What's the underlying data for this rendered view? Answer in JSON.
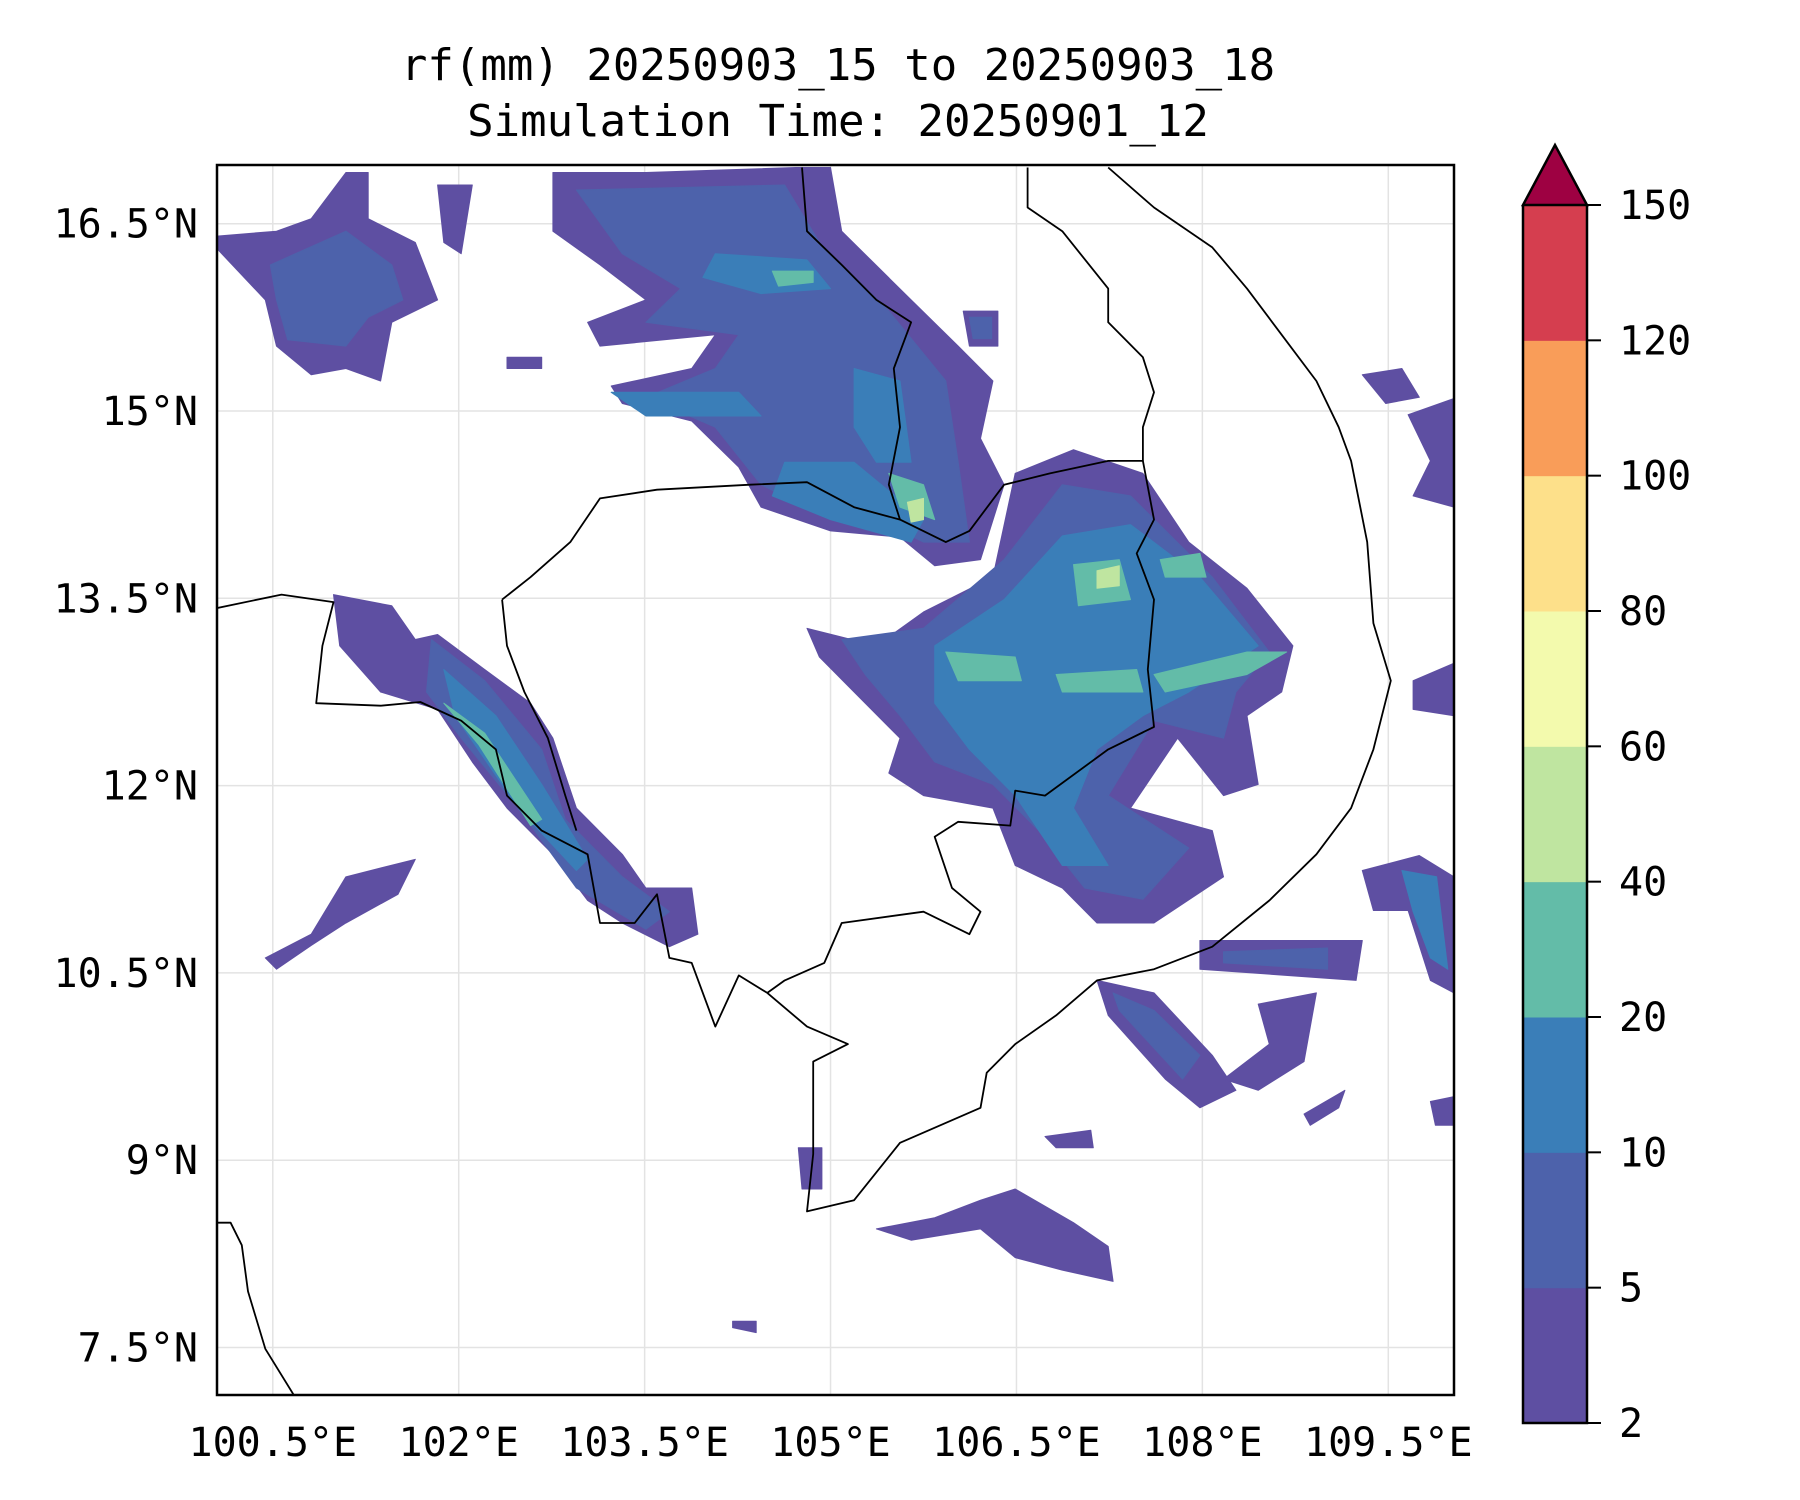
{
  "chart_data": {
    "type": "contourf-map",
    "title": [
      "rf(mm) 20250903_15 to 20250903_18",
      "Simulation Time: 20250901_12"
    ],
    "xlabel": "",
    "ylabel": "",
    "xlim": [
      100.05,
      110.03
    ],
    "ylim": [
      7.12,
      16.97
    ],
    "grid": true,
    "xticks": [
      {
        "value": 100.5,
        "label": "100.5°E"
      },
      {
        "value": 102,
        "label": "102°E"
      },
      {
        "value": 103.5,
        "label": "103.5°E"
      },
      {
        "value": 105,
        "label": "105°E"
      },
      {
        "value": 106.5,
        "label": "106.5°E"
      },
      {
        "value": 108,
        "label": "108°E"
      },
      {
        "value": 109.5,
        "label": "109.5°E"
      }
    ],
    "yticks": [
      {
        "value": 16.5,
        "label": "16.5°N"
      },
      {
        "value": 15,
        "label": "15°N"
      },
      {
        "value": 13.5,
        "label": "13.5°N"
      },
      {
        "value": 12,
        "label": "12°N"
      },
      {
        "value": 10.5,
        "label": "10.5°N"
      },
      {
        "value": 9,
        "label": "9°N"
      },
      {
        "value": 7.5,
        "label": "7.5°N"
      }
    ],
    "colorbar": {
      "levels": [
        2,
        5,
        10,
        20,
        40,
        60,
        80,
        100,
        120,
        150
      ],
      "labels": [
        "2",
        "5",
        "10",
        "20",
        "40",
        "60",
        "80",
        "100",
        "120",
        "150"
      ],
      "colors": [
        "#5e4fa2",
        "#4d62ab",
        "#3a7eb8",
        "#63bca8",
        "#bfe5a0",
        "#f3faad",
        "#fde08a",
        "#f99d59",
        "#d53e4f"
      ],
      "extend_max_color": "#9e0142",
      "placement": "right"
    },
    "rain_regions": [
      {
        "level": 0,
        "pts": [
          104.81,
          13.26,
          105.37,
          13.12,
          105.75,
          13.39,
          106.31,
          13.67,
          106.49,
          14.5,
          106.96,
          14.69,
          107.52,
          14.5,
          107.89,
          13.95,
          108.36,
          13.58,
          108.73,
          13.12,
          108.64,
          12.75,
          108.36,
          12.56,
          108.45,
          12.01,
          108.17,
          11.92,
          107.8,
          12.38,
          107.42,
          11.82,
          108.08,
          11.64,
          108.17,
          11.27,
          107.61,
          10.9,
          107.15,
          10.9,
          106.87,
          11.18,
          106.49,
          11.36,
          106.31,
          11.82,
          105.75,
          11.92,
          105.47,
          12.1,
          105.56,
          12.38,
          105.19,
          12.75,
          104.91,
          13.03
        ]
      },
      {
        "level": 0,
        "pts": [
          102.76,
          16.91,
          103.51,
          16.91,
          104.72,
          16.95,
          105.0,
          16.95,
          105.09,
          16.44,
          105.65,
          15.89,
          106.03,
          15.52,
          106.31,
          15.24,
          106.21,
          14.78,
          106.4,
          14.41,
          106.21,
          13.81,
          105.84,
          13.76,
          105.56,
          13.99,
          105.0,
          14.04,
          104.44,
          14.23,
          104.26,
          14.55,
          103.88,
          14.92,
          103.32,
          15.06,
          103.23,
          15.2,
          103.88,
          15.34,
          104.07,
          15.61,
          103.14,
          15.52,
          103.04,
          15.71,
          103.51,
          15.89,
          103.14,
          16.17,
          102.76,
          16.44
        ]
      },
      {
        "level": 0,
        "pts": [
          100.04,
          16.4,
          100.53,
          16.44,
          100.81,
          16.54,
          101.09,
          16.91,
          101.27,
          16.91,
          101.27,
          16.54,
          101.65,
          16.35,
          101.83,
          15.89,
          101.46,
          15.71,
          101.37,
          15.24,
          101.09,
          15.34,
          100.81,
          15.29,
          100.53,
          15.52,
          100.44,
          15.89,
          100.04,
          16.31
        ]
      },
      {
        "level": 0,
        "pts": [
          100.99,
          13.53,
          101.46,
          13.44,
          101.65,
          13.17,
          101.83,
          13.21,
          102.21,
          12.93,
          102.58,
          12.66,
          102.76,
          12.38,
          102.95,
          11.82,
          103.32,
          11.45,
          103.51,
          11.18,
          103.88,
          11.18,
          103.93,
          10.81,
          103.7,
          10.71,
          103.32,
          10.9,
          103.04,
          11.08,
          102.76,
          11.45,
          102.39,
          11.82,
          102.11,
          12.19,
          101.83,
          12.61,
          101.37,
          12.75,
          101.04,
          13.12
        ]
      },
      {
        "level": 0,
        "pts": [
          107.15,
          10.44,
          107.61,
          10.34,
          108.08,
          9.84,
          108.27,
          9.56,
          107.98,
          9.42,
          107.7,
          9.65,
          107.24,
          10.16
        ]
      },
      {
        "level": 0,
        "pts": [
          108.45,
          10.25,
          108.92,
          10.34,
          108.82,
          9.79,
          108.45,
          9.56,
          108.17,
          9.65,
          108.54,
          9.93
        ]
      },
      {
        "level": 0,
        "pts": [
          107.98,
          10.76,
          109.29,
          10.76,
          109.24,
          10.44,
          107.98,
          10.53
        ]
      },
      {
        "level": 0,
        "pts": [
          109.29,
          11.32,
          109.75,
          11.44,
          110.03,
          11.27,
          110.03,
          10.34,
          109.84,
          10.44,
          109.66,
          11.0,
          109.38,
          11.0
        ]
      },
      {
        "level": 0,
        "pts": [
          105.37,
          8.45,
          105.84,
          8.54,
          106.21,
          8.68,
          106.49,
          8.77,
          106.96,
          8.5,
          107.24,
          8.31,
          107.28,
          8.03,
          106.87,
          8.12,
          106.49,
          8.22,
          106.21,
          8.45,
          105.65,
          8.36
        ]
      },
      {
        "level": 0,
        "pts": [
          106.73,
          9.19,
          107.1,
          9.24,
          107.12,
          9.1,
          106.82,
          9.1
        ]
      },
      {
        "level": 0,
        "pts": [
          108.82,
          9.37,
          109.15,
          9.56,
          109.1,
          9.42,
          108.87,
          9.28
        ]
      },
      {
        "level": 0,
        "pts": [
          100.44,
          10.62,
          100.81,
          10.81,
          101.09,
          11.27,
          101.65,
          11.41,
          101.51,
          11.13,
          101.09,
          10.9,
          100.81,
          10.72,
          100.53,
          10.53
        ]
      },
      {
        "level": 0,
        "pts": [
          109.29,
          15.29,
          109.61,
          15.34,
          109.75,
          15.11,
          109.48,
          15.06
        ]
      },
      {
        "level": 0,
        "pts": [
          109.66,
          14.97,
          110.03,
          15.1,
          110.03,
          14.23,
          109.7,
          14.32,
          109.84,
          14.6
        ]
      },
      {
        "level": 0,
        "pts": [
          109.7,
          12.84,
          110.03,
          12.98,
          110.03,
          12.56,
          109.7,
          12.61
        ]
      },
      {
        "level": 0,
        "pts": [
          109.84,
          9.47,
          110.03,
          9.51,
          110.03,
          9.28,
          109.88,
          9.28
        ]
      },
      {
        "level": 0,
        "pts": [
          104.21,
          7.71,
          104.4,
          7.71,
          104.4,
          7.62,
          104.21,
          7.66
        ]
      },
      {
        "level": 0,
        "pts": [
          104.74,
          9.1,
          104.93,
          9.1,
          104.93,
          8.77,
          104.77,
          8.77
        ]
      },
      {
        "level": 0,
        "pts": [
          102.39,
          15.43,
          102.67,
          15.43,
          102.67,
          15.34,
          102.39,
          15.34
        ]
      },
      {
        "level": 0,
        "pts": [
          101.83,
          16.81,
          102.11,
          16.81,
          102.02,
          16.26,
          101.88,
          16.35
        ]
      },
      {
        "level": 0,
        "pts": [
          106.07,
          15.8,
          106.35,
          15.8,
          106.35,
          15.52,
          106.12,
          15.52
        ]
      },
      {
        "level": 1,
        "pts": [
          105.09,
          13.17,
          105.75,
          13.26,
          106.4,
          13.81,
          106.87,
          14.41,
          107.42,
          14.32,
          108.08,
          13.67,
          108.54,
          13.07,
          108.27,
          12.75,
          108.17,
          12.38,
          107.61,
          12.52,
          107.24,
          11.92,
          107.89,
          11.5,
          107.52,
          11.09,
          107.05,
          11.18,
          106.68,
          11.64,
          106.31,
          12.01,
          105.84,
          12.19,
          105.56,
          12.56,
          105.28,
          12.89
        ]
      },
      {
        "level": 1,
        "pts": [
          102.95,
          16.77,
          104.63,
          16.81,
          104.91,
          16.35,
          105.47,
          15.8,
          105.93,
          15.24,
          106.03,
          14.59,
          106.12,
          13.95,
          105.75,
          13.95,
          105.37,
          14.13,
          104.81,
          14.23,
          104.44,
          14.41,
          104.07,
          14.87,
          103.51,
          15.11,
          104.07,
          15.34,
          104.26,
          15.61,
          103.51,
          15.71,
          103.79,
          15.98,
          103.32,
          16.26
        ]
      },
      {
        "level": 1,
        "pts": [
          100.48,
          16.17,
          101.09,
          16.44,
          101.46,
          16.17,
          101.55,
          15.89,
          101.27,
          15.75,
          101.09,
          15.52,
          100.62,
          15.57,
          100.53,
          15.89
        ]
      },
      {
        "level": 1,
        "pts": [
          101.78,
          13.17,
          102.21,
          12.84,
          102.67,
          12.29,
          102.86,
          11.73,
          103.32,
          11.27,
          103.7,
          10.99,
          103.51,
          10.85,
          102.95,
          11.18,
          102.48,
          11.82,
          102.02,
          12.38,
          101.74,
          12.75
        ]
      },
      {
        "level": 1,
        "pts": [
          107.28,
          10.34,
          107.61,
          10.2,
          107.98,
          9.84,
          107.84,
          9.65,
          107.33,
          10.2
        ]
      },
      {
        "level": 1,
        "pts": [
          108.17,
          10.67,
          109.01,
          10.7,
          109.01,
          10.53,
          108.17,
          10.58
        ]
      },
      {
        "level": 1,
        "pts": [
          106.12,
          15.75,
          106.3,
          15.75,
          106.3,
          15.58,
          106.15,
          15.58
        ]
      },
      {
        "level": 2,
        "pts": [
          105.84,
          13.12,
          106.4,
          13.49,
          106.87,
          14.0,
          107.42,
          14.09,
          107.98,
          13.67,
          108.45,
          13.12,
          107.89,
          12.75,
          107.52,
          12.56,
          107.15,
          12.29,
          106.96,
          11.82,
          107.24,
          11.36,
          106.87,
          11.36,
          106.49,
          11.92,
          106.12,
          12.29,
          105.84,
          12.66
        ]
      },
      {
        "level": 2,
        "pts": [
          104.07,
          16.26,
          104.81,
          16.21,
          105.0,
          15.98,
          104.44,
          15.94,
          103.97,
          16.07
        ]
      },
      {
        "level": 2,
        "pts": [
          104.63,
          14.59,
          105.19,
          14.59,
          105.75,
          14.13,
          105.65,
          13.95,
          105.0,
          14.13,
          104.53,
          14.32
        ]
      },
      {
        "level": 2,
        "pts": [
          105.19,
          15.34,
          105.56,
          15.24,
          105.65,
          14.59,
          105.37,
          14.59,
          105.19,
          14.87
        ]
      },
      {
        "level": 2,
        "pts": [
          103.23,
          15.15,
          104.26,
          15.15,
          104.44,
          14.96,
          103.51,
          14.96
        ]
      },
      {
        "level": 2,
        "pts": [
          101.88,
          12.93,
          102.3,
          12.56,
          102.67,
          12.01,
          103.04,
          11.41,
          102.95,
          11.32,
          102.48,
          11.82,
          101.97,
          12.56
        ]
      },
      {
        "level": 2,
        "pts": [
          109.61,
          11.32,
          109.89,
          11.27,
          109.98,
          10.53,
          109.84,
          10.62,
          109.7,
          10.99
        ]
      },
      {
        "level": 3,
        "pts": [
          105.93,
          13.07,
          106.49,
          13.03,
          106.54,
          12.84,
          106.03,
          12.84
        ]
      },
      {
        "level": 3,
        "pts": [
          106.96,
          13.77,
          107.33,
          13.81,
          107.42,
          13.49,
          107.0,
          13.44
        ]
      },
      {
        "level": 3,
        "pts": [
          106.82,
          12.89,
          107.47,
          12.93,
          107.52,
          12.75,
          106.87,
          12.75
        ]
      },
      {
        "level": 3,
        "pts": [
          107.61,
          12.89,
          108.36,
          13.07,
          108.68,
          13.07,
          108.36,
          12.89,
          107.7,
          12.75
        ]
      },
      {
        "level": 3,
        "pts": [
          107.66,
          13.81,
          107.98,
          13.86,
          108.03,
          13.67,
          107.7,
          13.67
        ]
      },
      {
        "level": 3,
        "pts": [
          104.53,
          16.12,
          104.86,
          16.12,
          104.86,
          16.03,
          104.58,
          16.0
        ]
      },
      {
        "level": 3,
        "pts": [
          105.47,
          14.5,
          105.75,
          14.41,
          105.84,
          14.13,
          105.56,
          14.23
        ]
      },
      {
        "level": 3,
        "pts": [
          101.88,
          12.66,
          102.21,
          12.42,
          102.67,
          11.73,
          102.58,
          11.68,
          102.16,
          12.33
        ]
      },
      {
        "level": 4,
        "pts": [
          107.15,
          13.72,
          107.33,
          13.76,
          107.33,
          13.6,
          107.15,
          13.58
        ]
      },
      {
        "level": 4,
        "pts": [
          105.62,
          14.27,
          105.75,
          14.3,
          105.75,
          14.13,
          105.65,
          14.11
        ]
      }
    ],
    "boundary_lines": [
      [
        107.24,
        16.95,
        107.61,
        16.63,
        108.08,
        16.31,
        108.36,
        15.98,
        108.64,
        15.61,
        108.92,
        15.24,
        109.1,
        14.87,
        109.2,
        14.6,
        109.33,
        13.95,
        109.38,
        13.3,
        109.52,
        12.84,
        109.38,
        12.29,
        109.2,
        11.82,
        108.92,
        11.45,
        108.54,
        11.08,
        108.08,
        10.71,
        107.61,
        10.53,
        107.15,
        10.44,
        106.82,
        10.16,
        106.49,
        9.93,
        106.26,
        9.7,
        106.21,
        9.42,
        105.56,
        9.14,
        105.19,
        8.68,
        104.81,
        8.59,
        104.86,
        9.05,
        104.86,
        9.79,
        105.14,
        9.93,
        104.81,
        10.07,
        104.49,
        10.34,
        104.26,
        10.48,
        104.07,
        10.07,
        103.88,
        10.58,
        103.7,
        10.62,
        103.6,
        11.13,
        103.42,
        10.9,
        103.14,
        10.9,
        103.04,
        11.45,
        102.67,
        11.64,
        102.39,
        11.92,
        102.3,
        12.29,
        102.02,
        12.52,
        101.69,
        12.67,
        101.37,
        12.64,
        100.85,
        12.66,
        100.9,
        13.12,
        100.99,
        13.47,
        100.57,
        13.53,
        100.04,
        13.42
      ],
      [
        100.04,
        8.5,
        100.16,
        8.5,
        100.25,
        8.32,
        100.3,
        7.95,
        100.44,
        7.49,
        100.7,
        7.07
      ],
      [
        102.35,
        13.49,
        102.58,
        13.67,
        102.9,
        13.95,
        103.14,
        14.3,
        103.6,
        14.37,
        104.35,
        14.41,
        104.81,
        14.43,
        105.19,
        14.23,
        105.56,
        14.13,
        105.93,
        13.95,
        106.12,
        14.04,
        106.4,
        14.41,
        106.77,
        14.5,
        107.24,
        14.6,
        107.52,
        14.6,
        107.61,
        14.13,
        107.47,
        13.86,
        107.61,
        13.49,
        107.56,
        12.93,
        107.61,
        12.47,
        107.24,
        12.29,
        106.73,
        11.92,
        106.49,
        11.96,
        106.45,
        11.68,
        106.03,
        11.71,
        105.84,
        11.59,
        105.98,
        11.18,
        106.21,
        10.99,
        106.12,
        10.81,
        105.75,
        10.99,
        105.09,
        10.9,
        104.95,
        10.58,
        104.63,
        10.44,
        104.49,
        10.34
      ],
      [
        102.35,
        13.49,
        102.39,
        13.12,
        102.53,
        12.75,
        102.72,
        12.38,
        102.86,
        11.92,
        102.95,
        11.64
      ],
      [
        104.77,
        16.95,
        104.81,
        16.44,
        105.09,
        16.17,
        105.37,
        15.89,
        105.65,
        15.71,
        105.51,
        15.34,
        105.56,
        14.87,
        105.47,
        14.41,
        105.56,
        14.13
      ],
      [
        106.59,
        16.95,
        106.59,
        16.63,
        106.87,
        16.44,
        107.24,
        15.98,
        107.24,
        15.71,
        107.52,
        15.43,
        107.61,
        15.15,
        107.52,
        14.87,
        107.52,
        14.6
      ]
    ]
  }
}
